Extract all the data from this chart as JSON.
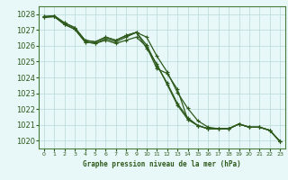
{
  "background_color": "#e8f8f8",
  "grid_color": "#b8d8d8",
  "line_color": "#2d5a1b",
  "spine_color": "#4a7a3a",
  "title": "Graphe pression niveau de la mer (hPa)",
  "xlim": [
    -0.5,
    23.5
  ],
  "ylim": [
    1019.5,
    1028.5
  ],
  "yticks": [
    1020,
    1021,
    1022,
    1023,
    1024,
    1025,
    1026,
    1027,
    1028
  ],
  "xticks": [
    0,
    1,
    2,
    3,
    4,
    5,
    6,
    7,
    8,
    9,
    10,
    11,
    12,
    13,
    14,
    15,
    16,
    17,
    18,
    19,
    20,
    21,
    22,
    23
  ],
  "series": [
    [
      1027.8,
      1027.85,
      1027.35,
      1027.05,
      1026.25,
      1026.15,
      1026.35,
      1026.15,
      1026.35,
      1026.55,
      1025.95,
      1024.55,
      1024.25,
      1023.25,
      1021.35,
      1020.95,
      1020.75,
      1020.75,
      1020.75,
      1021.05,
      1020.85,
      1020.85,
      1020.65,
      1019.95
    ],
    [
      1027.8,
      1027.85,
      1027.35,
      1027.05,
      1026.25,
      1026.15,
      1026.45,
      1026.25,
      1026.55,
      1026.85,
      1026.55,
      1025.35,
      1024.35,
      1023.05,
      1022.05,
      1021.25,
      1020.85,
      1020.75,
      1020.75,
      1021.05,
      1020.85,
      1020.85,
      1020.65,
      1019.95
    ],
    [
      1027.85,
      1027.9,
      1027.45,
      1027.15,
      1026.35,
      1026.25,
      1026.55,
      1026.35,
      1026.65,
      1026.85,
      1026.05,
      1024.75,
      1023.65,
      1022.35,
      1021.45,
      1020.95,
      1020.75,
      1020.75,
      1020.75,
      1021.05,
      1020.85,
      1020.85,
      1020.65,
      1019.95
    ],
    [
      1027.85,
      1027.9,
      1027.45,
      1027.15,
      1026.35,
      1026.25,
      1026.55,
      1026.35,
      1026.65,
      1026.85,
      1025.85,
      1024.85,
      1023.55,
      1022.25,
      1021.35,
      1020.95,
      1020.75,
      1020.75,
      1020.75,
      1021.05,
      1020.85,
      1020.85,
      1020.65,
      1019.95
    ]
  ]
}
